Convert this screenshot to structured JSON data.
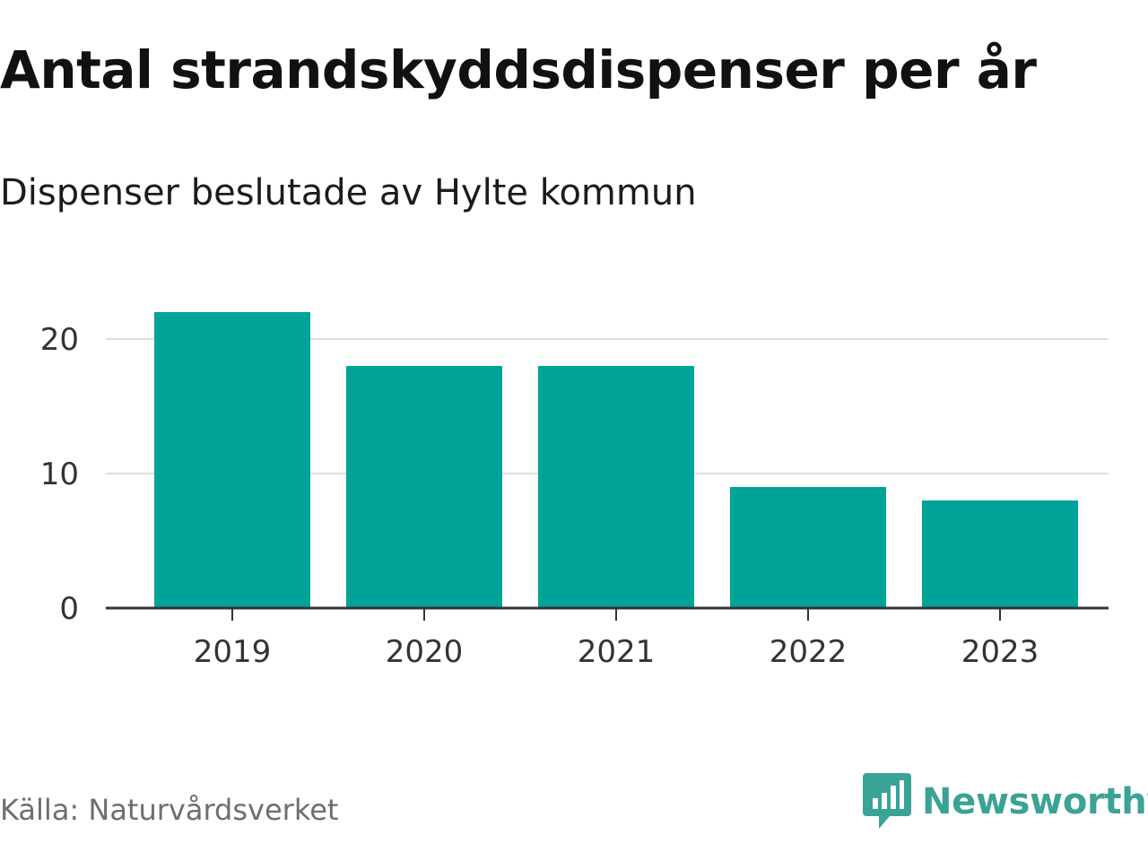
{
  "title": "Antal strandskyddsdispenser per år",
  "subtitle": "Dispenser beslutade av Hylte kommun",
  "source": "Källa: Naturvårdsverket",
  "brand": {
    "name": "Newsworthy",
    "icon": "newsworthy-logo-icon"
  },
  "colors": {
    "bar": "#00a398",
    "grid": "#dddddd",
    "axis": "#333333",
    "brand": "#3aa395"
  },
  "chart_data": {
    "type": "bar",
    "title": "Antal strandskyddsdispenser per år",
    "subtitle": "Dispenser beslutade av Hylte kommun",
    "categories": [
      "2019",
      "2020",
      "2021",
      "2022",
      "2023"
    ],
    "values": [
      22,
      18,
      18,
      9,
      8
    ],
    "xlabel": "",
    "ylabel": "",
    "ylim": [
      0,
      20
    ],
    "yticks": [
      0,
      10,
      20
    ],
    "grid": true,
    "legend": "none"
  }
}
